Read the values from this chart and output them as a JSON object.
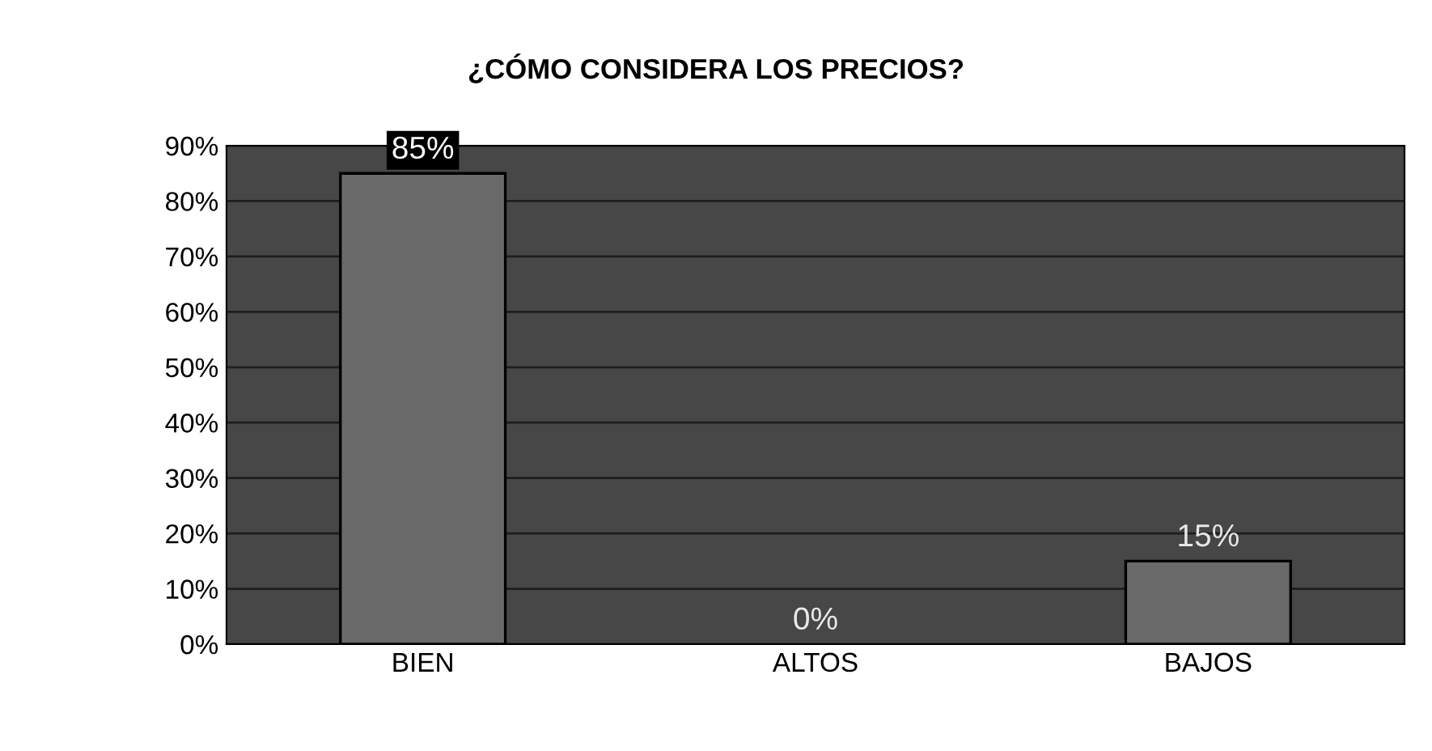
{
  "chart_data": {
    "type": "bar",
    "title": "¿CÓMO CONSIDERA LOS PRECIOS?",
    "categories": [
      "BIEN",
      "ALTOS",
      "BAJOS"
    ],
    "values": [
      85,
      0,
      15
    ],
    "value_labels": [
      "85%",
      "0%",
      "15%"
    ],
    "color": "#6a6a6a",
    "ylim": [
      0,
      90
    ],
    "yticks": [
      {
        "value": 0,
        "label": "0%"
      },
      {
        "value": 10,
        "label": "10%"
      },
      {
        "value": 20,
        "label": "20%"
      },
      {
        "value": 30,
        "label": "30%"
      },
      {
        "value": 40,
        "label": "40%"
      },
      {
        "value": 50,
        "label": "50%"
      },
      {
        "value": 60,
        "label": "60%"
      },
      {
        "value": 70,
        "label": "70%"
      },
      {
        "value": 80,
        "label": "80%"
      },
      {
        "value": 90,
        "label": "90%"
      }
    ],
    "grid": "y",
    "legend": false
  }
}
